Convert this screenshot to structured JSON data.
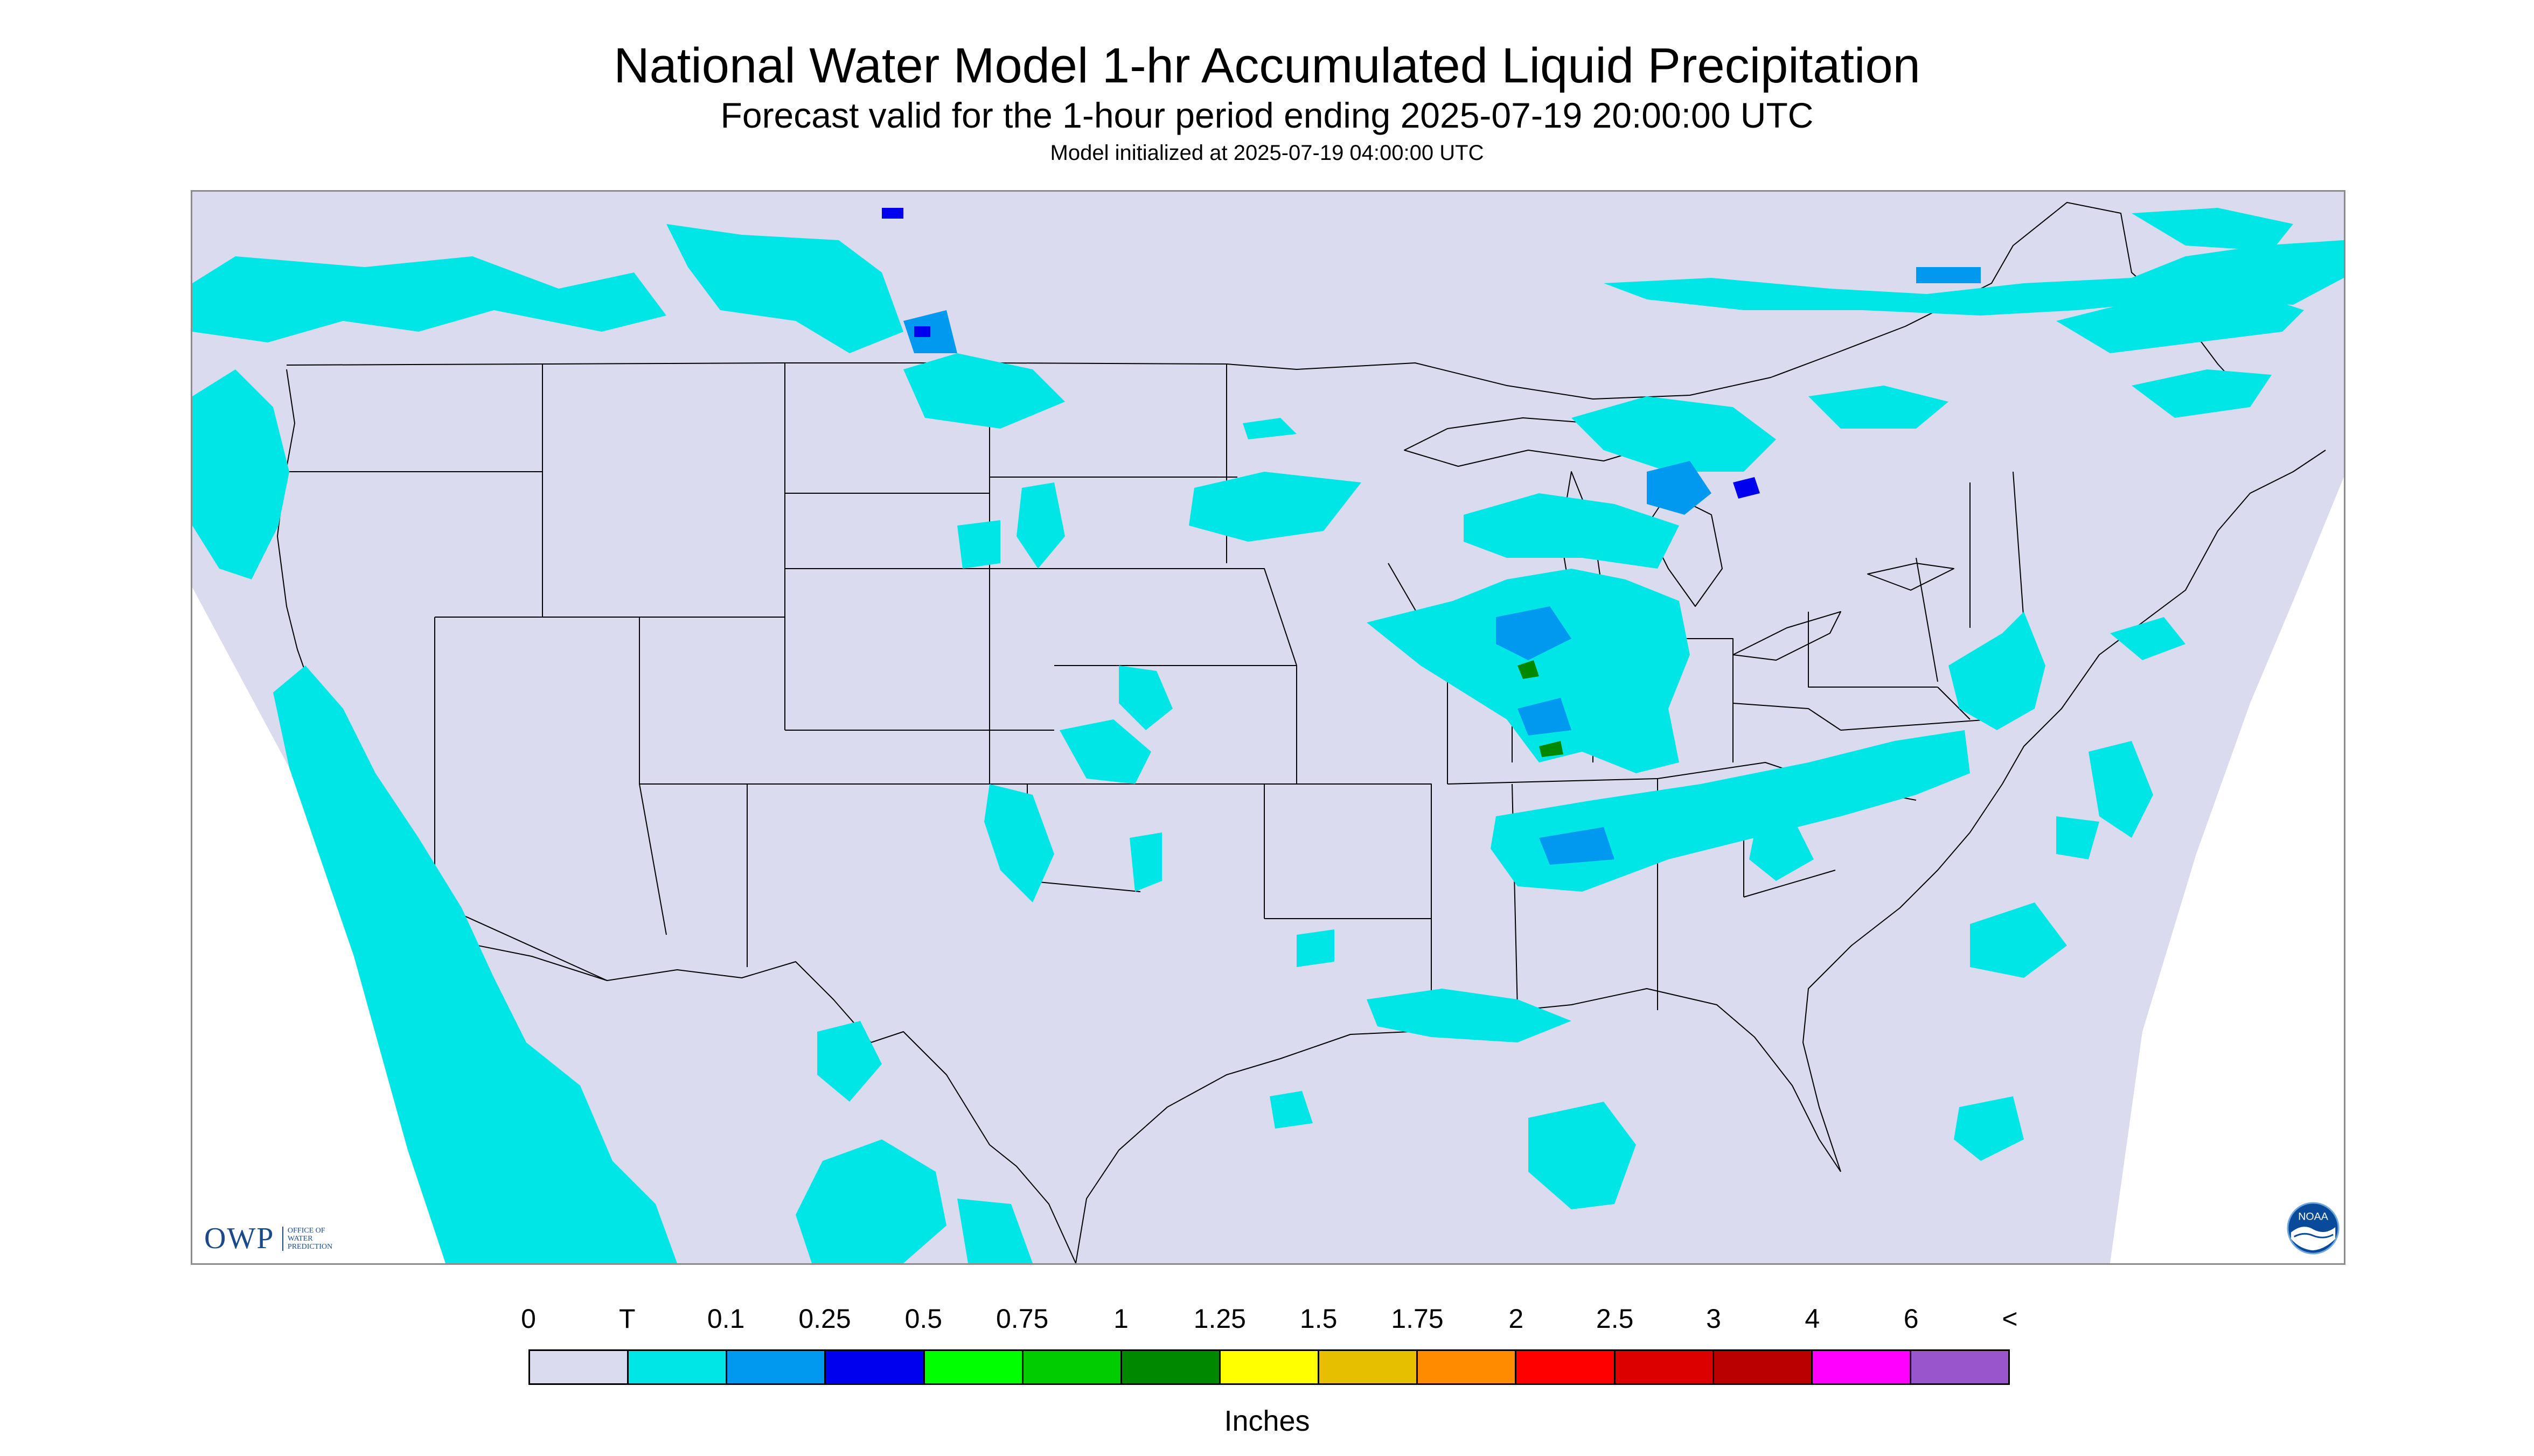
{
  "header": {
    "title": "National Water Model 1-hr Accumulated Liquid Precipitation",
    "subtitle": "Forecast valid for the 1-hour period ending 2025-07-19 20:00:00 UTC",
    "init_text": "Model initialized at 2025-07-19 04:00:00 UTC"
  },
  "map": {
    "background_color": "#dadbee",
    "outside_domain_color": "#ffffff",
    "boundary_color": "#000000",
    "owp_logo": {
      "text": "OWP",
      "subtext_lines": [
        "OFFICE OF",
        "WATER",
        "PREDICTION"
      ]
    },
    "noaa_logo": {
      "text": "NOAA",
      "icon": "noaa-emblem-icon"
    }
  },
  "legend": {
    "tick_labels": [
      "0",
      "T",
      "0.1",
      "0.25",
      "0.5",
      "0.75",
      "1",
      "1.25",
      "1.5",
      "1.75",
      "2",
      "2.5",
      "3",
      "4",
      "6",
      "<"
    ],
    "colors": [
      "#dadbee",
      "#00e6e6",
      "#0099f0",
      "#0000ee",
      "#00ff00",
      "#00cc00",
      "#008800",
      "#ffff00",
      "#e6bf00",
      "#ff8c00",
      "#ff0000",
      "#dd0000",
      "#bb0000",
      "#ff00ff",
      "#9955cc"
    ],
    "units_label": "Inches"
  }
}
